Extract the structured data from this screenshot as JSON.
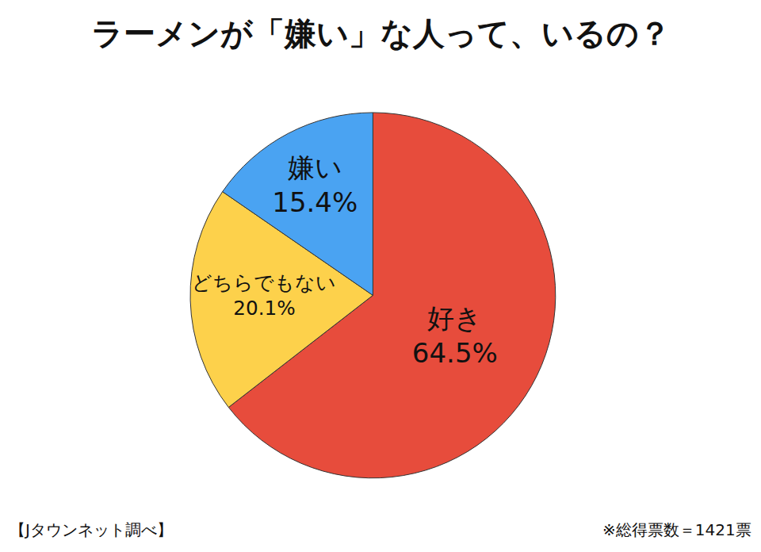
{
  "chart_data": {
    "type": "pie",
    "title": "ラーメンが「嫌い」な人って、いるの？",
    "categories": [
      "好き",
      "どちらでもない",
      "嫌い"
    ],
    "values": [
      64.5,
      20.1,
      15.4
    ],
    "value_labels": [
      "64.5%",
      "20.1%",
      "15.4%"
    ],
    "colors": [
      "#e74c3c",
      "#fdd14b",
      "#4aa3f2"
    ],
    "data_labels": true,
    "annotations": [
      "【Jタウンネット調べ】",
      "※総得票数＝1421票"
    ]
  }
}
